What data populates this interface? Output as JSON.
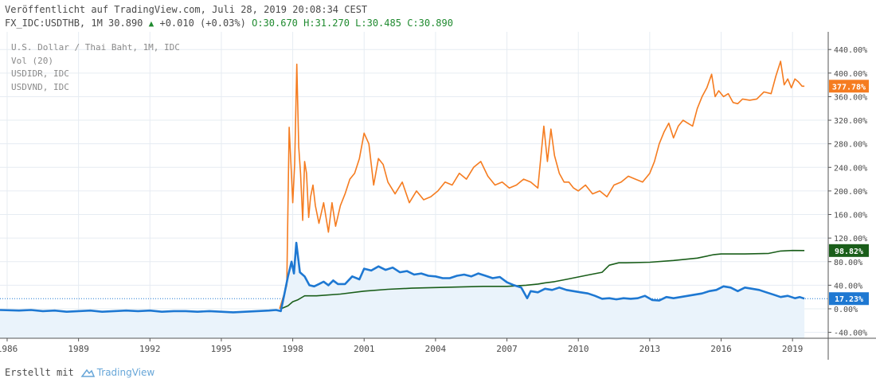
{
  "header": {
    "published": "Veröffentlicht auf TradingView.com, Juli 28, 2019 20:08:34 CEST",
    "symbol_line": "FX_IDC:USDTHB, 1M 30.890",
    "change": "+0.010 (+0.03%)",
    "o": "O:30.670",
    "h": "H:31.270",
    "l": "L:30.485",
    "c": "C:30.890"
  },
  "legend": [
    "U.S. Dollar / Thai Baht, 1M, IDC",
    "Vol (20)",
    "USDIDR, IDC",
    "USDVND, IDC"
  ],
  "footer": {
    "created": "Erstellt mit",
    "brand": "TradingView"
  },
  "colors": {
    "usdidr": "#f57c20",
    "usdvnd": "#1a5e1a",
    "usdthb": "#1e78d2",
    "area": "#eaf3fb",
    "grid": "#e6ecf2"
  },
  "chart_data": {
    "type": "line",
    "x_tick_labels": [
      "1986",
      "1989",
      "1992",
      "1995",
      "1998",
      "2001",
      "2004",
      "2007",
      "2010",
      "2013",
      "2016",
      "2019"
    ],
    "y_tick_labels": [
      "440.00%",
      "400.00%",
      "360.00%",
      "320.00%",
      "280.00%",
      "240.00%",
      "200.00%",
      "160.00%",
      "120.00%",
      "80.00%",
      "40.00%",
      "0.00%",
      "-40.00%"
    ],
    "ylim": [
      -50,
      470
    ],
    "xlim": [
      1985.7,
      2020.5
    ],
    "grid": true,
    "series": [
      {
        "name": "USDIDR, IDC",
        "color": "#f57c20",
        "last_label": "377.78%",
        "last_value": 377.78,
        "x": [
          1997.45,
          1997.6,
          1997.75,
          1997.85,
          1997.95,
          1998.0,
          1998.08,
          1998.17,
          1998.25,
          1998.33,
          1998.42,
          1998.5,
          1998.58,
          1998.67,
          1998.75,
          1998.85,
          1998.95,
          1999.1,
          1999.3,
          1999.5,
          1999.65,
          1999.8,
          2000.0,
          2000.2,
          2000.4,
          2000.6,
          2000.8,
          2001.0,
          2001.2,
          2001.4,
          2001.6,
          2001.8,
          2002.0,
          2002.3,
          2002.6,
          2002.9,
          2003.2,
          2003.5,
          2003.8,
          2004.1,
          2004.4,
          2004.7,
          2005.0,
          2005.3,
          2005.6,
          2005.9,
          2006.2,
          2006.5,
          2006.8,
          2007.1,
          2007.4,
          2007.7,
          2008.0,
          2008.3,
          2008.55,
          2008.7,
          2008.85,
          2009.0,
          2009.2,
          2009.4,
          2009.6,
          2009.8,
          2010.0,
          2010.3,
          2010.6,
          2010.9,
          2011.2,
          2011.5,
          2011.8,
          2012.1,
          2012.4,
          2012.7,
          2013.0,
          2013.2,
          2013.4,
          2013.6,
          2013.8,
          2014.0,
          2014.2,
          2014.4,
          2014.6,
          2014.8,
          2015.0,
          2015.2,
          2015.4,
          2015.6,
          2015.75,
          2015.9,
          2016.1,
          2016.3,
          2016.5,
          2016.7,
          2016.9,
          2017.2,
          2017.5,
          2017.8,
          2018.1,
          2018.3,
          2018.5,
          2018.65,
          2018.8,
          2018.95,
          2019.1,
          2019.25,
          2019.4,
          2019.5
        ],
        "y": [
          0,
          20,
          40,
          308,
          225,
          180,
          245,
          415,
          275,
          230,
          150,
          250,
          230,
          155,
          190,
          210,
          175,
          145,
          180,
          130,
          180,
          140,
          175,
          195,
          220,
          230,
          255,
          298,
          280,
          210,
          255,
          245,
          215,
          195,
          215,
          180,
          200,
          185,
          190,
          200,
          215,
          210,
          230,
          220,
          240,
          250,
          225,
          210,
          215,
          205,
          210,
          220,
          215,
          205,
          310,
          250,
          305,
          260,
          230,
          215,
          215,
          205,
          200,
          210,
          195,
          200,
          190,
          210,
          215,
          225,
          220,
          215,
          230,
          250,
          280,
          300,
          315,
          290,
          310,
          320,
          315,
          310,
          340,
          360,
          375,
          398,
          360,
          370,
          360,
          365,
          350,
          348,
          356,
          354,
          356,
          368,
          365,
          395,
          420,
          380,
          390,
          375,
          390,
          385,
          377.78,
          377.78
        ]
      },
      {
        "name": "USDVND, IDC",
        "color": "#1a5e1a",
        "last_label": "98.82%",
        "last_value": 98.82,
        "x": [
          1997.5,
          1997.8,
          1998.0,
          1998.2,
          1998.5,
          1999.0,
          2000.0,
          2001.0,
          2002.0,
          2003.0,
          2004.0,
          2005.0,
          2006.0,
          2007.0,
          2007.8,
          2008.3,
          2008.6,
          2009.0,
          2009.5,
          2010.0,
          2010.5,
          2011.0,
          2011.3,
          2011.7,
          2012.0,
          2013.0,
          2014.0,
          2015.0,
          2015.7,
          2016.0,
          2017.0,
          2018.0,
          2018.5,
          2019.0,
          2019.5
        ],
        "y": [
          0,
          5,
          12,
          15,
          22,
          22,
          25,
          30,
          33,
          35,
          36,
          37,
          38,
          38,
          40,
          42,
          44,
          46,
          50,
          54,
          58,
          62,
          74,
          78,
          78,
          79,
          82,
          86,
          92,
          93,
          93,
          94,
          98,
          99,
          98.82
        ]
      },
      {
        "name": "FX_IDC:USDTHB",
        "color": "#1e78d2",
        "last_label": "17.23%",
        "last_value": 17.23,
        "x": [
          1985.7,
          1986.5,
          1987.0,
          1987.5,
          1988.0,
          1988.5,
          1989.0,
          1989.5,
          1990.0,
          1990.5,
          1991.0,
          1991.5,
          1992.0,
          1992.5,
          1993.0,
          1993.5,
          1994.0,
          1994.5,
          1995.0,
          1995.5,
          1996.0,
          1996.5,
          1997.0,
          1997.3,
          1997.5,
          1997.65,
          1997.8,
          1997.95,
          1998.05,
          1998.15,
          1998.3,
          1998.5,
          1998.7,
          1998.9,
          1999.1,
          1999.3,
          1999.5,
          1999.7,
          1999.9,
          2000.2,
          2000.5,
          2000.8,
          2001.0,
          2001.3,
          2001.6,
          2001.9,
          2002.2,
          2002.5,
          2002.8,
          2003.1,
          2003.4,
          2003.7,
          2004.0,
          2004.3,
          2004.6,
          2004.9,
          2005.2,
          2005.5,
          2005.8,
          2006.1,
          2006.4,
          2006.7,
          2007.0,
          2007.3,
          2007.6,
          2007.85,
          2008.0,
          2008.3,
          2008.6,
          2008.9,
          2009.2,
          2009.5,
          2009.8,
          2010.1,
          2010.4,
          2010.7,
          2011.0,
          2011.3,
          2011.6,
          2011.9,
          2012.2,
          2012.5,
          2012.8,
          2013.1,
          2013.4,
          2013.7,
          2014.0,
          2014.3,
          2014.6,
          2014.9,
          2015.2,
          2015.5,
          2015.8,
          2016.1,
          2016.4,
          2016.7,
          2017.0,
          2017.3,
          2017.6,
          2017.9,
          2018.2,
          2018.5,
          2018.8,
          2019.1,
          2019.3,
          2019.5
        ],
        "y": [
          -2,
          -3,
          -2,
          -4,
          -3,
          -5,
          -4,
          -3,
          -5,
          -4,
          -3,
          -4,
          -3,
          -5,
          -4,
          -4,
          -5,
          -4,
          -5,
          -6,
          -5,
          -4,
          -3,
          -2,
          -4,
          25,
          55,
          80,
          60,
          112,
          62,
          55,
          40,
          38,
          42,
          46,
          40,
          48,
          42,
          42,
          55,
          50,
          68,
          65,
          72,
          66,
          70,
          62,
          64,
          58,
          60,
          56,
          55,
          52,
          52,
          56,
          58,
          55,
          60,
          56,
          52,
          54,
          45,
          40,
          36,
          18,
          30,
          28,
          34,
          32,
          36,
          32,
          30,
          28,
          26,
          22,
          17,
          18,
          16,
          18,
          17,
          18,
          22,
          15,
          14,
          20,
          18,
          20,
          22,
          24,
          26,
          30,
          32,
          38,
          36,
          30,
          36,
          34,
          32,
          28,
          24,
          20,
          22,
          18,
          20,
          17.23
        ]
      }
    ]
  }
}
